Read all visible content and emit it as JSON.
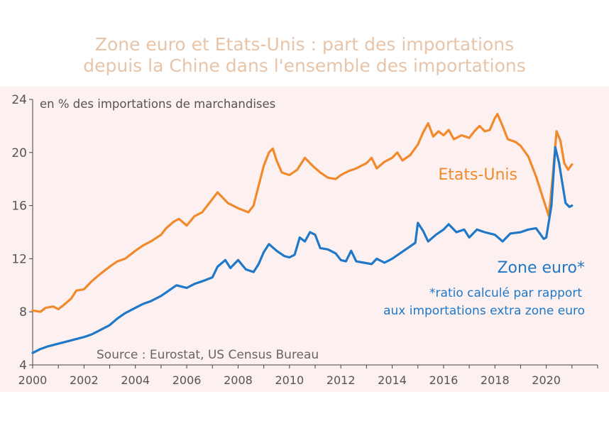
{
  "title_lines": [
    "Zone euro et Etats-Unis : part des importations",
    "depuis la Chine dans l'ensemble des importations"
  ],
  "colors": {
    "title": "#e8c4a8",
    "background_panel": "#fdf0f0",
    "etats_unis": "#f08a2c",
    "zone_euro": "#1f78c8",
    "axis_text": "#555555",
    "source_text": "#666666"
  },
  "chart_data": {
    "type": "line",
    "title": "Zone euro et Etats-Unis : part des importations depuis la Chine dans l'ensemble des importations",
    "unit_label": "en % des importations de marchandises",
    "source": "Source : Eurostat, US Census Bureau",
    "note_lines": [
      "*ratio calculé par rapport",
      "aux importations extra zone euro"
    ],
    "xlim": [
      2000,
      2022
    ],
    "ylim": [
      4,
      24
    ],
    "x_ticks": [
      2000,
      2002,
      2004,
      2006,
      2008,
      2010,
      2012,
      2014,
      2016,
      2018,
      2020
    ],
    "y_ticks": [
      4,
      8,
      12,
      16,
      20,
      24
    ],
    "grid": false,
    "series": [
      {
        "name": "Etats-Unis",
        "color": "#f08a2c",
        "points": [
          [
            2000.0,
            8.1
          ],
          [
            2000.3,
            8.0
          ],
          [
            2000.5,
            8.3
          ],
          [
            2000.8,
            8.4
          ],
          [
            2001.0,
            8.2
          ],
          [
            2001.2,
            8.5
          ],
          [
            2001.5,
            9.0
          ],
          [
            2001.7,
            9.6
          ],
          [
            2002.0,
            9.7
          ],
          [
            2002.3,
            10.3
          ],
          [
            2002.6,
            10.8
          ],
          [
            2003.0,
            11.4
          ],
          [
            2003.3,
            11.8
          ],
          [
            2003.6,
            12.0
          ],
          [
            2004.0,
            12.6
          ],
          [
            2004.3,
            13.0
          ],
          [
            2004.6,
            13.3
          ],
          [
            2005.0,
            13.8
          ],
          [
            2005.2,
            14.3
          ],
          [
            2005.5,
            14.8
          ],
          [
            2005.7,
            15.0
          ],
          [
            2006.0,
            14.5
          ],
          [
            2006.3,
            15.2
          ],
          [
            2006.6,
            15.5
          ],
          [
            2007.0,
            16.5
          ],
          [
            2007.2,
            17.0
          ],
          [
            2007.4,
            16.6
          ],
          [
            2007.6,
            16.2
          ],
          [
            2008.0,
            15.8
          ],
          [
            2008.4,
            15.5
          ],
          [
            2008.6,
            16.0
          ],
          [
            2008.8,
            17.5
          ],
          [
            2009.0,
            19.0
          ],
          [
            2009.2,
            20.0
          ],
          [
            2009.35,
            20.3
          ],
          [
            2009.5,
            19.4
          ],
          [
            2009.7,
            18.5
          ],
          [
            2010.0,
            18.3
          ],
          [
            2010.3,
            18.7
          ],
          [
            2010.6,
            19.6
          ],
          [
            2010.9,
            19.0
          ],
          [
            2011.2,
            18.5
          ],
          [
            2011.5,
            18.1
          ],
          [
            2011.8,
            18.0
          ],
          [
            2012.0,
            18.3
          ],
          [
            2012.3,
            18.6
          ],
          [
            2012.6,
            18.8
          ],
          [
            2013.0,
            19.2
          ],
          [
            2013.2,
            19.6
          ],
          [
            2013.4,
            18.8
          ],
          [
            2013.7,
            19.3
          ],
          [
            2014.0,
            19.6
          ],
          [
            2014.2,
            20.0
          ],
          [
            2014.4,
            19.4
          ],
          [
            2014.7,
            19.8
          ],
          [
            2015.0,
            20.6
          ],
          [
            2015.2,
            21.5
          ],
          [
            2015.4,
            22.2
          ],
          [
            2015.6,
            21.2
          ],
          [
            2015.8,
            21.6
          ],
          [
            2016.0,
            21.3
          ],
          [
            2016.2,
            21.7
          ],
          [
            2016.4,
            21.0
          ],
          [
            2016.7,
            21.3
          ],
          [
            2017.0,
            21.1
          ],
          [
            2017.2,
            21.6
          ],
          [
            2017.4,
            22.0
          ],
          [
            2017.6,
            21.6
          ],
          [
            2017.8,
            21.7
          ],
          [
            2018.0,
            22.6
          ],
          [
            2018.1,
            22.9
          ],
          [
            2018.3,
            22.0
          ],
          [
            2018.5,
            21.0
          ],
          [
            2018.8,
            20.8
          ],
          [
            2019.0,
            20.5
          ],
          [
            2019.3,
            19.7
          ],
          [
            2019.6,
            18.2
          ],
          [
            2019.8,
            17.0
          ],
          [
            2020.0,
            15.8
          ],
          [
            2020.1,
            15.2
          ],
          [
            2020.25,
            18.2
          ],
          [
            2020.4,
            21.6
          ],
          [
            2020.55,
            20.9
          ],
          [
            2020.7,
            19.2
          ],
          [
            2020.85,
            18.7
          ],
          [
            2021.0,
            19.1
          ]
        ]
      },
      {
        "name": "Zone euro*",
        "color": "#1f78c8",
        "points": [
          [
            2000.0,
            4.9
          ],
          [
            2000.3,
            5.2
          ],
          [
            2000.6,
            5.4
          ],
          [
            2001.0,
            5.6
          ],
          [
            2001.4,
            5.8
          ],
          [
            2001.8,
            6.0
          ],
          [
            2002.0,
            6.1
          ],
          [
            2002.3,
            6.3
          ],
          [
            2002.6,
            6.6
          ],
          [
            2003.0,
            7.0
          ],
          [
            2003.3,
            7.5
          ],
          [
            2003.6,
            7.9
          ],
          [
            2004.0,
            8.3
          ],
          [
            2004.3,
            8.6
          ],
          [
            2004.6,
            8.8
          ],
          [
            2005.0,
            9.2
          ],
          [
            2005.3,
            9.6
          ],
          [
            2005.6,
            10.0
          ],
          [
            2006.0,
            9.8
          ],
          [
            2006.3,
            10.1
          ],
          [
            2006.6,
            10.3
          ],
          [
            2007.0,
            10.6
          ],
          [
            2007.2,
            11.4
          ],
          [
            2007.5,
            11.9
          ],
          [
            2007.7,
            11.3
          ],
          [
            2008.0,
            11.9
          ],
          [
            2008.3,
            11.2
          ],
          [
            2008.6,
            11.0
          ],
          [
            2008.8,
            11.6
          ],
          [
            2009.0,
            12.5
          ],
          [
            2009.2,
            13.1
          ],
          [
            2009.5,
            12.6
          ],
          [
            2009.8,
            12.2
          ],
          [
            2010.0,
            12.1
          ],
          [
            2010.2,
            12.3
          ],
          [
            2010.4,
            13.6
          ],
          [
            2010.6,
            13.3
          ],
          [
            2010.8,
            14.0
          ],
          [
            2011.0,
            13.8
          ],
          [
            2011.2,
            12.8
          ],
          [
            2011.5,
            12.7
          ],
          [
            2011.8,
            12.4
          ],
          [
            2012.0,
            11.9
          ],
          [
            2012.2,
            11.8
          ],
          [
            2012.4,
            12.6
          ],
          [
            2012.6,
            11.8
          ],
          [
            2012.9,
            11.7
          ],
          [
            2013.2,
            11.6
          ],
          [
            2013.4,
            12.0
          ],
          [
            2013.7,
            11.7
          ],
          [
            2014.0,
            12.0
          ],
          [
            2014.3,
            12.4
          ],
          [
            2014.6,
            12.8
          ],
          [
            2014.9,
            13.2
          ],
          [
            2015.0,
            14.7
          ],
          [
            2015.2,
            14.1
          ],
          [
            2015.4,
            13.3
          ],
          [
            2015.7,
            13.8
          ],
          [
            2016.0,
            14.2
          ],
          [
            2016.2,
            14.6
          ],
          [
            2016.5,
            14.0
          ],
          [
            2016.8,
            14.2
          ],
          [
            2017.0,
            13.6
          ],
          [
            2017.3,
            14.2
          ],
          [
            2017.6,
            14.0
          ],
          [
            2018.0,
            13.8
          ],
          [
            2018.3,
            13.3
          ],
          [
            2018.6,
            13.9
          ],
          [
            2019.0,
            14.0
          ],
          [
            2019.3,
            14.2
          ],
          [
            2019.6,
            14.3
          ],
          [
            2019.9,
            13.5
          ],
          [
            2020.0,
            13.6
          ],
          [
            2020.2,
            16.0
          ],
          [
            2020.35,
            20.4
          ],
          [
            2020.5,
            19.2
          ],
          [
            2020.6,
            18.0
          ],
          [
            2020.75,
            16.2
          ],
          [
            2020.9,
            15.9
          ],
          [
            2021.0,
            16.0
          ]
        ]
      }
    ]
  }
}
